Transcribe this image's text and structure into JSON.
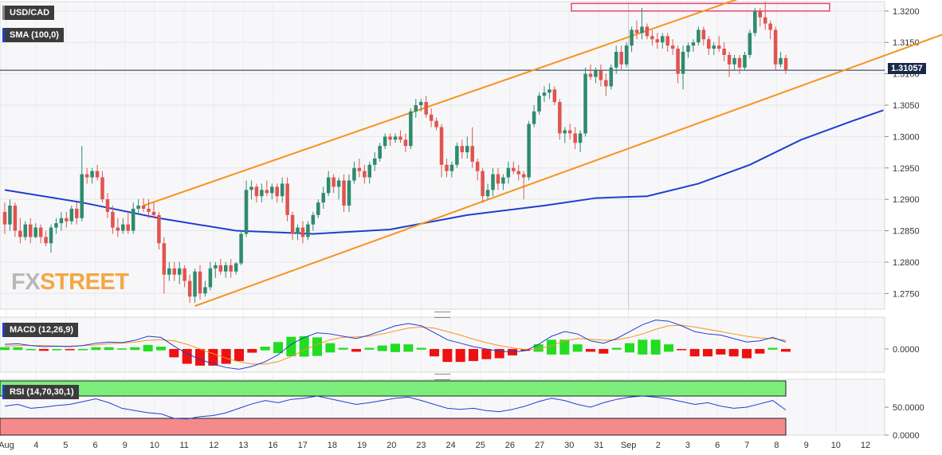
{
  "chart_data": [
    {
      "type": "candlestick",
      "title": "USD/CAD",
      "overlay_label": "SMA (100,0)",
      "ylim": [
        1.2725,
        1.3215
      ],
      "y_ticks": [
        "1.3200",
        "1.3150",
        "1.3100",
        "1.3050",
        "1.3000",
        "1.2950",
        "1.2900",
        "1.2850",
        "1.2800",
        "1.2750"
      ],
      "x_ticks": [
        "Aug",
        "4",
        "5",
        "6",
        "9",
        "10",
        "11",
        "12",
        "13",
        "16",
        "17",
        "18",
        "19",
        "20",
        "23",
        "24",
        "25",
        "26",
        "27",
        "30",
        "31",
        "Sep",
        "2",
        "3",
        "6",
        "7",
        "8",
        "9",
        "10",
        "12"
      ],
      "last_price": "1.31057",
      "candles": [
        [
          1.288,
          1.2895,
          1.2845,
          1.286
        ],
        [
          1.286,
          1.29,
          1.285,
          1.289
        ],
        [
          1.289,
          1.2895,
          1.284,
          1.285
        ],
        [
          1.285,
          1.287,
          1.283,
          1.284
        ],
        [
          1.284,
          1.2865,
          1.2835,
          1.286
        ],
        [
          1.286,
          1.287,
          1.283,
          1.284
        ],
        [
          1.284,
          1.2862,
          1.2838,
          1.2855
        ],
        [
          1.2855,
          1.286,
          1.283,
          1.284
        ],
        [
          1.284,
          1.285,
          1.2825,
          1.283
        ],
        [
          1.283,
          1.286,
          1.2815,
          1.2855
        ],
        [
          1.2855,
          1.287,
          1.2845,
          1.2862
        ],
        [
          1.2862,
          1.288,
          1.285,
          1.287
        ],
        [
          1.287,
          1.288,
          1.2855,
          1.2865
        ],
        [
          1.2865,
          1.289,
          1.286,
          1.2885
        ],
        [
          1.2885,
          1.2895,
          1.286,
          1.287
        ],
        [
          1.287,
          1.2985,
          1.2865,
          1.294
        ],
        [
          1.294,
          1.295,
          1.2925,
          1.2935
        ],
        [
          1.2935,
          1.295,
          1.2925,
          1.2945
        ],
        [
          1.2945,
          1.2955,
          1.293,
          1.2935
        ],
        [
          1.2935,
          1.2945,
          1.2895,
          1.29
        ],
        [
          1.29,
          1.291,
          1.287,
          1.288
        ],
        [
          1.288,
          1.289,
          1.2845,
          1.2855
        ],
        [
          1.2855,
          1.287,
          1.284,
          1.285
        ],
        [
          1.285,
          1.287,
          1.2845,
          1.286
        ],
        [
          1.286,
          1.288,
          1.2845,
          1.285
        ],
        [
          1.285,
          1.2895,
          1.2845,
          1.2885
        ],
        [
          1.2885,
          1.29,
          1.2875,
          1.289
        ],
        [
          1.289,
          1.2902,
          1.288,
          1.2885
        ],
        [
          1.2885,
          1.29,
          1.287,
          1.288
        ],
        [
          1.288,
          1.2895,
          1.287,
          1.2875
        ],
        [
          1.2875,
          1.288,
          1.282,
          1.283
        ],
        [
          1.283,
          1.284,
          1.275,
          1.278
        ],
        [
          1.278,
          1.28,
          1.277,
          1.279
        ],
        [
          1.279,
          1.28,
          1.277,
          1.278
        ],
        [
          1.278,
          1.28,
          1.2765,
          1.279
        ],
        [
          1.279,
          1.2795,
          1.276,
          1.277
        ],
        [
          1.277,
          1.278,
          1.2735,
          1.2745
        ],
        [
          1.2745,
          1.279,
          1.2735,
          1.2785
        ],
        [
          1.2785,
          1.2795,
          1.274,
          1.275
        ],
        [
          1.275,
          1.277,
          1.2745,
          1.276
        ],
        [
          1.276,
          1.28,
          1.2755,
          1.279
        ],
        [
          1.279,
          1.28,
          1.2775,
          1.2795
        ],
        [
          1.2795,
          1.2805,
          1.278,
          1.2785
        ],
        [
          1.2785,
          1.28,
          1.2775,
          1.2795
        ],
        [
          1.2795,
          1.2805,
          1.2775,
          1.2785
        ],
        [
          1.2785,
          1.28,
          1.278,
          1.2798
        ],
        [
          1.2798,
          1.285,
          1.2795,
          1.2845
        ],
        [
          1.2845,
          1.293,
          1.284,
          1.2915
        ],
        [
          1.2915,
          1.293,
          1.29,
          1.292
        ],
        [
          1.292,
          1.2925,
          1.2895,
          1.2905
        ],
        [
          1.2905,
          1.2925,
          1.2895,
          1.2915
        ],
        [
          1.2915,
          1.293,
          1.2905,
          1.291
        ],
        [
          1.291,
          1.2925,
          1.29,
          1.292
        ],
        [
          1.292,
          1.2925,
          1.2895,
          1.2905
        ],
        [
          1.2905,
          1.2935,
          1.2895,
          1.2925
        ],
        [
          1.2925,
          1.2935,
          1.2865,
          1.2875
        ],
        [
          1.2875,
          1.288,
          1.2835,
          1.2845
        ],
        [
          1.2845,
          1.286,
          1.2835,
          1.2855
        ],
        [
          1.2855,
          1.2865,
          1.283,
          1.284
        ],
        [
          1.284,
          1.2865,
          1.2835,
          1.286
        ],
        [
          1.286,
          1.288,
          1.285,
          1.2875
        ],
        [
          1.2875,
          1.29,
          1.287,
          1.2895
        ],
        [
          1.2895,
          1.292,
          1.2885,
          1.291
        ],
        [
          1.291,
          1.2945,
          1.2905,
          1.2935
        ],
        [
          1.2935,
          1.294,
          1.291,
          1.292
        ],
        [
          1.292,
          1.2935,
          1.29,
          1.293
        ],
        [
          1.293,
          1.294,
          1.288,
          1.289
        ],
        [
          1.289,
          1.294,
          1.288,
          1.293
        ],
        [
          1.293,
          1.296,
          1.2925,
          1.295
        ],
        [
          1.295,
          1.2965,
          1.2935,
          1.2945
        ],
        [
          1.2945,
          1.2955,
          1.2925,
          1.2935
        ],
        [
          1.2935,
          1.296,
          1.2925,
          1.2955
        ],
        [
          1.2955,
          1.2975,
          1.2945,
          1.2965
        ],
        [
          1.2965,
          1.299,
          1.296,
          1.2985
        ],
        [
          1.2985,
          1.3005,
          1.298,
          1.3
        ],
        [
          1.3,
          1.3005,
          1.2985,
          1.2995
        ],
        [
          1.2995,
          1.3005,
          1.299,
          1.3
        ],
        [
          1.3,
          1.301,
          1.299,
          1.2995
        ],
        [
          1.2995,
          1.3005,
          1.2975,
          1.2985
        ],
        [
          1.2985,
          1.3045,
          1.298,
          1.304
        ],
        [
          1.304,
          1.306,
          1.303,
          1.305
        ],
        [
          1.305,
          1.306,
          1.304,
          1.3055
        ],
        [
          1.3055,
          1.3065,
          1.303,
          1.3035
        ],
        [
          1.3035,
          1.3045,
          1.3015,
          1.3025
        ],
        [
          1.3025,
          1.303,
          1.301,
          1.3015
        ],
        [
          1.3015,
          1.302,
          1.2935,
          1.2955
        ],
        [
          1.2955,
          1.2965,
          1.2935,
          1.2945
        ],
        [
          1.2945,
          1.296,
          1.2935,
          1.2955
        ],
        [
          1.2955,
          1.299,
          1.295,
          1.2985
        ],
        [
          1.2985,
          1.2995,
          1.2965,
          1.2975
        ],
        [
          1.2975,
          1.3,
          1.2965,
          1.2985
        ],
        [
          1.2985,
          1.3015,
          1.295,
          1.296
        ],
        [
          1.296,
          1.2965,
          1.293,
          1.2945
        ],
        [
          1.2945,
          1.295,
          1.2895,
          1.2905
        ],
        [
          1.2905,
          1.2925,
          1.29,
          1.2915
        ],
        [
          1.2915,
          1.295,
          1.2905,
          1.294
        ],
        [
          1.294,
          1.295,
          1.2915,
          1.2925
        ],
        [
          1.2925,
          1.294,
          1.2915,
          1.2935
        ],
        [
          1.2935,
          1.296,
          1.2925,
          1.295
        ],
        [
          1.295,
          1.296,
          1.294,
          1.2945
        ],
        [
          1.2945,
          1.2955,
          1.293,
          1.294
        ],
        [
          1.294,
          1.2945,
          1.29,
          1.2935
        ],
        [
          1.2935,
          1.3025,
          1.293,
          1.302
        ],
        [
          1.302,
          1.305,
          1.3015,
          1.304
        ],
        [
          1.304,
          1.307,
          1.3035,
          1.3065
        ],
        [
          1.3065,
          1.308,
          1.3055,
          1.307
        ],
        [
          1.307,
          1.3085,
          1.306,
          1.3075
        ],
        [
          1.3075,
          1.308,
          1.305,
          1.3055
        ],
        [
          1.3055,
          1.306,
          1.2995,
          1.3005
        ],
        [
          1.3005,
          1.3015,
          1.299,
          1.301
        ],
        [
          1.301,
          1.302,
          1.2995,
          1.3005
        ],
        [
          1.3005,
          1.3015,
          1.298,
          1.299
        ],
        [
          1.299,
          1.301,
          1.2975,
          1.3005
        ],
        [
          1.3005,
          1.311,
          1.3,
          1.31
        ],
        [
          1.31,
          1.3115,
          1.309,
          1.3095
        ],
        [
          1.3095,
          1.311,
          1.3085,
          1.3105
        ],
        [
          1.3105,
          1.3115,
          1.308,
          1.309
        ],
        [
          1.309,
          1.31,
          1.3065,
          1.308
        ],
        [
          1.308,
          1.3115,
          1.3075,
          1.311
        ],
        [
          1.311,
          1.3145,
          1.31,
          1.3135
        ],
        [
          1.3135,
          1.3145,
          1.3105,
          1.3115
        ],
        [
          1.3115,
          1.315,
          1.311,
          1.3145
        ],
        [
          1.3145,
          1.3175,
          1.3135,
          1.317
        ],
        [
          1.317,
          1.3185,
          1.3155,
          1.3165
        ],
        [
          1.3165,
          1.3205,
          1.3155,
          1.3175
        ],
        [
          1.3175,
          1.318,
          1.3155,
          1.316
        ],
        [
          1.316,
          1.317,
          1.3145,
          1.3155
        ],
        [
          1.3155,
          1.3165,
          1.314,
          1.315
        ],
        [
          1.315,
          1.3165,
          1.314,
          1.316
        ],
        [
          1.316,
          1.3165,
          1.3135,
          1.3145
        ],
        [
          1.3145,
          1.3155,
          1.313,
          1.314
        ],
        [
          1.314,
          1.3145,
          1.3085,
          1.31
        ],
        [
          1.31,
          1.3145,
          1.3075,
          1.3135
        ],
        [
          1.3135,
          1.315,
          1.3125,
          1.3145
        ],
        [
          1.3145,
          1.3155,
          1.3135,
          1.315
        ],
        [
          1.315,
          1.3175,
          1.3145,
          1.317
        ],
        [
          1.317,
          1.3175,
          1.3145,
          1.3155
        ],
        [
          1.3155,
          1.316,
          1.313,
          1.314
        ],
        [
          1.314,
          1.315,
          1.313,
          1.3145
        ],
        [
          1.3145,
          1.316,
          1.3135,
          1.314
        ],
        [
          1.314,
          1.315,
          1.312,
          1.313
        ],
        [
          1.313,
          1.3135,
          1.3095,
          1.3115
        ],
        [
          1.3115,
          1.313,
          1.3105,
          1.3125
        ],
        [
          1.3125,
          1.313,
          1.31,
          1.311
        ],
        [
          1.311,
          1.3135,
          1.3105,
          1.313
        ],
        [
          1.313,
          1.317,
          1.3125,
          1.3165
        ],
        [
          1.3165,
          1.3205,
          1.316,
          1.32
        ],
        [
          1.32,
          1.3205,
          1.3175,
          1.319
        ],
        [
          1.319,
          1.3215,
          1.317,
          1.318
        ],
        [
          1.318,
          1.3185,
          1.3155,
          1.317
        ],
        [
          1.317,
          1.3175,
          1.3105,
          1.3115
        ],
        [
          1.3115,
          1.3135,
          1.311,
          1.3125
        ],
        [
          1.3125,
          1.313,
          1.31,
          1.3106
        ]
      ],
      "sma_100": [
        [
          0,
          1.2915
        ],
        [
          15,
          1.2895
        ],
        [
          30,
          1.287
        ],
        [
          45,
          1.285
        ],
        [
          60,
          1.2845
        ],
        [
          75,
          1.2852
        ],
        [
          90,
          1.2875
        ],
        [
          105,
          1.289
        ],
        [
          115,
          1.2902
        ],
        [
          125,
          1.2905
        ],
        [
          135,
          1.2925
        ],
        [
          145,
          1.2955
        ],
        [
          155,
          1.2995
        ],
        [
          165,
          1.3025
        ],
        [
          171,
          1.3042
        ]
      ],
      "channel_upper": [
        [
          27,
          1.289
        ],
        [
          143,
          1.322
        ]
      ],
      "channel_lower": [
        [
          37,
          1.273
        ],
        [
          185,
          1.317
        ]
      ],
      "resistance_box": [
        1.32,
        1.3212
      ]
    },
    {
      "type": "macd",
      "label": "MACD (12,26,9)",
      "y_ticks": [
        "0.0000"
      ],
      "ylim": [
        -0.004,
        0.0055
      ],
      "macd": [
        0.0008,
        0.0009,
        0.0006,
        0.0004,
        0.0005,
        0.0004,
        0.0006,
        0.001,
        0.0012,
        0.0011,
        0.0015,
        0.0022,
        0.002,
        0.0005,
        -0.0008,
        -0.0018,
        -0.0026,
        -0.0032,
        -0.0035,
        -0.003,
        -0.0022,
        -0.001,
        0.0008,
        0.002,
        0.0028,
        0.0026,
        0.0022,
        0.0018,
        0.0024,
        0.0032,
        0.004,
        0.0044,
        0.004,
        0.0028,
        0.0016,
        0.001,
        0.0004,
        0.0,
        -0.0004,
        -0.0005,
        -0.0003,
        0.0008,
        0.0022,
        0.003,
        0.0026,
        0.0014,
        0.001,
        0.0018,
        0.003,
        0.0042,
        0.005,
        0.0048,
        0.004,
        0.003,
        0.0026,
        0.0024,
        0.0018,
        0.0012,
        0.0014,
        0.002,
        0.0012
      ],
      "signal": [
        0.0005,
        0.0006,
        0.0006,
        0.0006,
        0.0005,
        0.0005,
        0.0006,
        0.0007,
        0.0009,
        0.001,
        0.0012,
        0.0015,
        0.0016,
        0.0014,
        0.0008,
        0.0,
        -0.0008,
        -0.0016,
        -0.0022,
        -0.0026,
        -0.0026,
        -0.0022,
        -0.0013,
        -0.0002,
        0.0008,
        0.0016,
        0.002,
        0.0021,
        0.0022,
        0.0026,
        0.0031,
        0.0036,
        0.0038,
        0.0036,
        0.003,
        0.0024,
        0.0017,
        0.0011,
        0.0006,
        0.0002,
        -0.0001,
        0.0,
        0.0006,
        0.0014,
        0.0018,
        0.0017,
        0.0015,
        0.0016,
        0.002,
        0.0026,
        0.0034,
        0.004,
        0.0041,
        0.0038,
        0.0034,
        0.003,
        0.0026,
        0.0022,
        0.0019,
        0.0018,
        0.0015
      ]
    },
    {
      "type": "rsi",
      "label": "RSI (14,70,30,1)",
      "y_ticks": [
        "50.0000",
        "0.0000"
      ],
      "ylim": [
        0,
        100
      ],
      "levels": [
        70,
        30
      ],
      "values": [
        52,
        55,
        48,
        50,
        53,
        55,
        60,
        65,
        58,
        48,
        44,
        40,
        38,
        30,
        29,
        33,
        35,
        40,
        48,
        56,
        62,
        58,
        64,
        66,
        70,
        65,
        60,
        55,
        58,
        62,
        66,
        68,
        62,
        55,
        48,
        46,
        48,
        44,
        42,
        46,
        52,
        60,
        66,
        62,
        55,
        50,
        58,
        64,
        68,
        70,
        68,
        65,
        60,
        55,
        58,
        52,
        48,
        50,
        56,
        62,
        45
      ]
    }
  ],
  "sma_tag": "SMA (100,0)",
  "macd_tag": "MACD (12,26,9)",
  "rsi_tag": "RSI (14,70,30,1)",
  "symbol_tag": "USD/CAD",
  "last_price": "1.31057",
  "logo": {
    "fx": "FX",
    "street": "STREET"
  },
  "colors": {
    "up": "#2e8b6e",
    "down": "#e0544f",
    "sma": "#1f3fd0",
    "channel": "#f7931e",
    "box": "#e8457a",
    "macd_pos": "#22dd22",
    "macd_neg": "#ee1111",
    "rsi_over": "#7bee7b",
    "rsi_under": "#f58a8a"
  }
}
